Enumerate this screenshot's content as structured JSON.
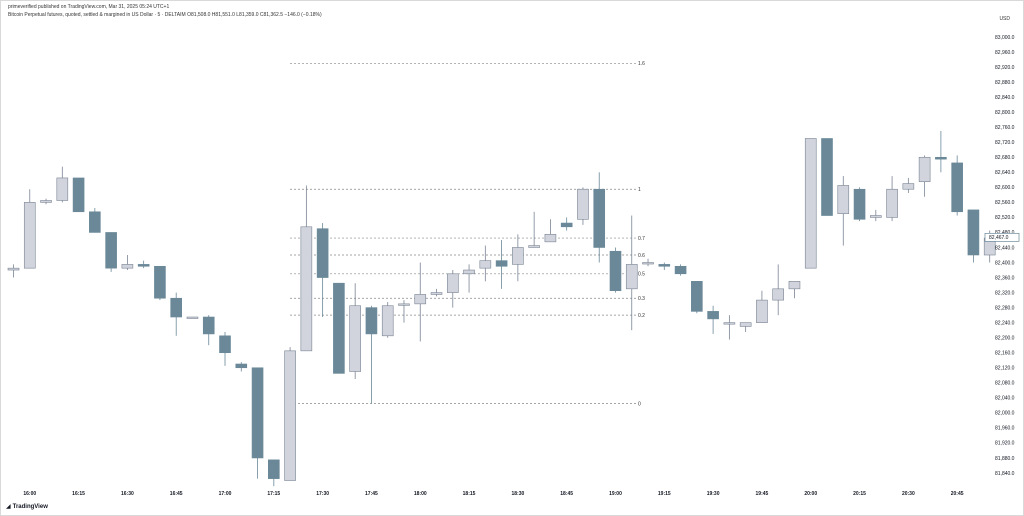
{
  "header": {
    "line1": "primeverified published on TradingView.com, Mar 31, 2025 05:24 UTC+1",
    "line2": "Bitcoin Perpetual futures, quoted, settled & margined in US Dollar · 5 · DELTAIM  O81,508.0  H81,551.0  L81,359.0  C81,362.5  −146.0 (−0.18%)",
    "currency": "USD"
  },
  "footer": {
    "logo_text": "TradingView"
  },
  "colors": {
    "bull": "#d1d4dc",
    "bear": "#6a8898",
    "grid_dash": "#888888",
    "price_tag_bg": "#ffffff"
  },
  "chart_data": {
    "type": "candlestick",
    "title": "Bitcoin Perpetual futures, 5 min",
    "ylabel": "USD",
    "ylim": [
      81780,
      83040
    ],
    "y_ticks": [
      81840,
      81880,
      81920,
      81960,
      82000,
      82040,
      82080,
      82120,
      82160,
      82200,
      82240,
      82280,
      82320,
      82360,
      82400,
      82440,
      82480,
      82520,
      82560,
      82600,
      82640,
      82680,
      82720,
      82760,
      82800,
      82840,
      82880,
      82920,
      82960,
      83000
    ],
    "x_ticks": [
      {
        "label": "16:00",
        "i": 1
      },
      {
        "label": "16:15",
        "i": 4
      },
      {
        "label": "16:30",
        "i": 7
      },
      {
        "label": "16:45",
        "i": 10
      },
      {
        "label": "17:00",
        "i": 13
      },
      {
        "label": "17:15",
        "i": 16
      },
      {
        "label": "17:30",
        "i": 19
      },
      {
        "label": "17:45",
        "i": 22
      },
      {
        "label": "18:00",
        "i": 25
      },
      {
        "label": "18:15",
        "i": 28
      },
      {
        "label": "18:30",
        "i": 31
      },
      {
        "label": "18:45",
        "i": 34
      },
      {
        "label": "19:00",
        "i": 37
      },
      {
        "label": "19:15",
        "i": 40
      },
      {
        "label": "19:30",
        "i": 43
      },
      {
        "label": "19:45",
        "i": 46
      },
      {
        "label": "20:00",
        "i": 49
      },
      {
        "label": "20:15",
        "i": 52
      },
      {
        "label": "20:30",
        "i": 55
      },
      {
        "label": "20:45",
        "i": 58
      }
    ],
    "current_price": "82,467.0",
    "current_value": 82467,
    "candles": [
      {
        "o": 82380,
        "h": 82395,
        "l": 82360,
        "c": 82385
      },
      {
        "o": 82385,
        "h": 82595,
        "l": 82385,
        "c": 82560
      },
      {
        "o": 82560,
        "h": 82570,
        "l": 82555,
        "c": 82565
      },
      {
        "o": 82565,
        "h": 82655,
        "l": 82560,
        "c": 82625
      },
      {
        "o": 82625,
        "h": 82625,
        "l": 82535,
        "c": 82535
      },
      {
        "o": 82535,
        "h": 82545,
        "l": 82480,
        "c": 82480
      },
      {
        "o": 82480,
        "h": 82480,
        "l": 82375,
        "c": 82385
      },
      {
        "o": 82385,
        "h": 82420,
        "l": 82380,
        "c": 82395
      },
      {
        "o": 82395,
        "h": 82405,
        "l": 82385,
        "c": 82390
      },
      {
        "o": 82390,
        "h": 82390,
        "l": 82300,
        "c": 82305
      },
      {
        "o": 82305,
        "h": 82320,
        "l": 82205,
        "c": 82255
      },
      {
        "o": 82255,
        "h": 82255,
        "l": 82255,
        "c": 82255
      },
      {
        "o": 82255,
        "h": 82260,
        "l": 82180,
        "c": 82210
      },
      {
        "o": 82205,
        "h": 82215,
        "l": 82125,
        "c": 82160
      },
      {
        "o": 82130,
        "h": 82135,
        "l": 82110,
        "c": 82120
      },
      {
        "o": 82120,
        "h": 82120,
        "l": 81825,
        "c": 81880
      },
      {
        "o": 81875,
        "h": 81875,
        "l": 81805,
        "c": 81825
      },
      {
        "o": 81820,
        "h": 82175,
        "l": 81820,
        "c": 82165
      },
      {
        "o": 82165,
        "h": 82605,
        "l": 82165,
        "c": 82495
      },
      {
        "o": 82490,
        "h": 82505,
        "l": 82255,
        "c": 82360
      },
      {
        "o": 82345,
        "h": 82345,
        "l": 82105,
        "c": 82105
      },
      {
        "o": 82110,
        "h": 82345,
        "l": 82090,
        "c": 82285
      },
      {
        "o": 82280,
        "h": 82285,
        "l": 82025,
        "c": 82210
      },
      {
        "o": 82205,
        "h": 82295,
        "l": 82200,
        "c": 82285
      },
      {
        "o": 82290,
        "h": 82300,
        "l": 82240,
        "c": 82290
      },
      {
        "o": 82290,
        "h": 82400,
        "l": 82190,
        "c": 82315
      },
      {
        "o": 82315,
        "h": 82330,
        "l": 82310,
        "c": 82320
      },
      {
        "o": 82320,
        "h": 82380,
        "l": 82280,
        "c": 82370
      },
      {
        "o": 82370,
        "h": 82395,
        "l": 82320,
        "c": 82380
      },
      {
        "o": 82385,
        "h": 82445,
        "l": 82350,
        "c": 82405
      },
      {
        "o": 82405,
        "h": 82460,
        "l": 82330,
        "c": 82390
      },
      {
        "o": 82395,
        "h": 82475,
        "l": 82350,
        "c": 82440
      },
      {
        "o": 82440,
        "h": 82535,
        "l": 82440,
        "c": 82445
      },
      {
        "o": 82455,
        "h": 82515,
        "l": 82455,
        "c": 82475
      },
      {
        "o": 82505,
        "h": 82520,
        "l": 82485,
        "c": 82495
      },
      {
        "o": 82515,
        "h": 82600,
        "l": 82500,
        "c": 82595
      },
      {
        "o": 82595,
        "h": 82640,
        "l": 82400,
        "c": 82440
      },
      {
        "o": 82430,
        "h": 82440,
        "l": 82320,
        "c": 82325
      },
      {
        "o": 82330,
        "h": 82525,
        "l": 82220,
        "c": 82395
      },
      {
        "o": 82400,
        "h": 82410,
        "l": 82390,
        "c": 82400
      },
      {
        "o": 82395,
        "h": 82400,
        "l": 82380,
        "c": 82390
      },
      {
        "o": 82390,
        "h": 82395,
        "l": 82365,
        "c": 82370
      },
      {
        "o": 82350,
        "h": 82350,
        "l": 82265,
        "c": 82270
      },
      {
        "o": 82270,
        "h": 82285,
        "l": 82210,
        "c": 82250
      },
      {
        "o": 82240,
        "h": 82260,
        "l": 82195,
        "c": 82240
      },
      {
        "o": 82230,
        "h": 82240,
        "l": 82215,
        "c": 82240
      },
      {
        "o": 82240,
        "h": 82325,
        "l": 82240,
        "c": 82300
      },
      {
        "o": 82300,
        "h": 82395,
        "l": 82260,
        "c": 82330
      },
      {
        "o": 82330,
        "h": 82340,
        "l": 82305,
        "c": 82350
      },
      {
        "o": 82385,
        "h": 82730,
        "l": 82385,
        "c": 82730
      },
      {
        "o": 82730,
        "h": 82730,
        "l": 82525,
        "c": 82525
      },
      {
        "o": 82530,
        "h": 82630,
        "l": 82445,
        "c": 82605
      },
      {
        "o": 82595,
        "h": 82600,
        "l": 82510,
        "c": 82515
      },
      {
        "o": 82520,
        "h": 82540,
        "l": 82510,
        "c": 82525
      },
      {
        "o": 82520,
        "h": 82630,
        "l": 82510,
        "c": 82595
      },
      {
        "o": 82595,
        "h": 82625,
        "l": 82585,
        "c": 82610
      },
      {
        "o": 82615,
        "h": 82685,
        "l": 82575,
        "c": 82680
      },
      {
        "o": 82680,
        "h": 82750,
        "l": 82640,
        "c": 82675
      },
      {
        "o": 82665,
        "h": 82685,
        "l": 82525,
        "c": 82535
      },
      {
        "o": 82540,
        "h": 82540,
        "l": 82400,
        "c": 82420
      },
      {
        "o": 82420,
        "h": 82485,
        "l": 82400,
        "c": 82465
      },
      {
        "o": 82470,
        "h": 82475,
        "l": 82460,
        "c": 82467
      }
    ],
    "fib_levels": [
      {
        "label": "1.6",
        "value": 82930
      },
      {
        "label": "1",
        "value": 82595
      },
      {
        "label": "0.7",
        "value": 82465
      },
      {
        "label": "0.6",
        "value": 82420
      },
      {
        "label": "0.5",
        "value": 82370
      },
      {
        "label": "0.3",
        "value": 82305
      },
      {
        "label": "0.2",
        "value": 82260
      },
      {
        "label": "0",
        "value": 82025
      }
    ]
  }
}
